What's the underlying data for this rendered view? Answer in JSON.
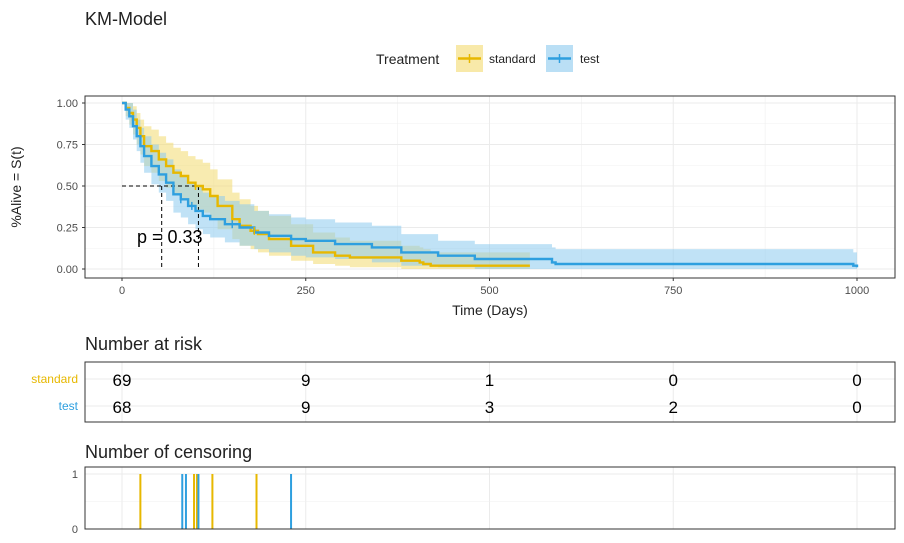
{
  "title": "KM-Model",
  "legend": {
    "title": "Treatment",
    "items": [
      {
        "label": "standard",
        "color": "#E7B800"
      },
      {
        "label": "test",
        "color": "#2E9FDF"
      }
    ]
  },
  "colors": {
    "standard": "#E7B800",
    "test": "#2E9FDF",
    "band_standard": "#F3DB6F",
    "band_test": "#8CCAEE"
  },
  "chart_data": [
    {
      "type": "line",
      "subtype": "kaplan-meier",
      "xlabel": "Time (Days)",
      "ylabel": "%Alive = S(t)",
      "xlim": [
        0,
        1000
      ],
      "ylim": [
        0,
        1
      ],
      "xticks": [
        "0",
        "250",
        "500",
        "750",
        "1000"
      ],
      "yticks": [
        "0.00",
        "0.25",
        "0.50",
        "0.75",
        "1.00"
      ],
      "grid": true,
      "annotation": "p = 0.33",
      "median_lines": [
        {
          "x": 54,
          "y": 0.5
        },
        {
          "x": 104,
          "y": 0.5
        }
      ],
      "series": [
        {
          "name": "standard",
          "x": [
            0,
            5,
            10,
            15,
            20,
            25,
            30,
            40,
            50,
            60,
            70,
            80,
            90,
            100,
            110,
            120,
            130,
            150,
            160,
            175,
            185,
            200,
            230,
            260,
            290,
            310,
            340,
            380,
            405,
            410,
            420,
            460,
            500,
            555
          ],
          "y": [
            1.0,
            0.97,
            0.94,
            0.9,
            0.85,
            0.8,
            0.74,
            0.71,
            0.66,
            0.62,
            0.58,
            0.56,
            0.52,
            0.5,
            0.48,
            0.44,
            0.38,
            0.3,
            0.26,
            0.23,
            0.21,
            0.18,
            0.14,
            0.1,
            0.08,
            0.07,
            0.07,
            0.05,
            0.04,
            0.03,
            0.02,
            0.02,
            0.02,
            0.02
          ],
          "lower": [
            1.0,
            0.92,
            0.87,
            0.81,
            0.75,
            0.69,
            0.62,
            0.58,
            0.53,
            0.49,
            0.45,
            0.42,
            0.38,
            0.36,
            0.34,
            0.3,
            0.24,
            0.18,
            0.14,
            0.12,
            0.1,
            0.08,
            0.05,
            0.03,
            0.02,
            0.01,
            0.01,
            0.0,
            0.0,
            0.0,
            0.0,
            0.0,
            0.0,
            0.0
          ],
          "upper": [
            1.0,
            1.0,
            1.0,
            0.98,
            0.94,
            0.9,
            0.86,
            0.84,
            0.8,
            0.76,
            0.73,
            0.71,
            0.68,
            0.66,
            0.64,
            0.6,
            0.54,
            0.46,
            0.42,
            0.38,
            0.35,
            0.32,
            0.27,
            0.22,
            0.19,
            0.17,
            0.17,
            0.14,
            0.13,
            0.12,
            0.1,
            0.1,
            0.1,
            0.1
          ],
          "censor_x": [
            100,
            180
          ]
        },
        {
          "name": "test",
          "x": [
            0,
            5,
            10,
            15,
            20,
            25,
            30,
            40,
            50,
            60,
            70,
            80,
            90,
            100,
            110,
            120,
            140,
            160,
            180,
            200,
            230,
            250,
            290,
            340,
            380,
            430,
            480,
            520,
            585,
            590,
            700,
            800,
            900,
            995,
            1000
          ],
          "y": [
            1.0,
            0.96,
            0.92,
            0.86,
            0.8,
            0.74,
            0.68,
            0.62,
            0.57,
            0.52,
            0.45,
            0.42,
            0.38,
            0.35,
            0.32,
            0.3,
            0.27,
            0.25,
            0.22,
            0.2,
            0.18,
            0.17,
            0.15,
            0.13,
            0.1,
            0.08,
            0.06,
            0.06,
            0.04,
            0.03,
            0.03,
            0.03,
            0.03,
            0.02,
            0.01
          ],
          "lower": [
            1.0,
            0.9,
            0.85,
            0.78,
            0.71,
            0.64,
            0.58,
            0.51,
            0.46,
            0.41,
            0.34,
            0.31,
            0.27,
            0.24,
            0.21,
            0.19,
            0.16,
            0.14,
            0.12,
            0.1,
            0.08,
            0.07,
            0.06,
            0.04,
            0.02,
            0.01,
            0.0,
            0.0,
            0.0,
            0.0,
            0.0,
            0.0,
            0.0,
            0.0,
            0.0
          ],
          "upper": [
            1.0,
            1.0,
            1.0,
            0.96,
            0.9,
            0.85,
            0.8,
            0.75,
            0.7,
            0.66,
            0.6,
            0.56,
            0.52,
            0.5,
            0.46,
            0.44,
            0.41,
            0.39,
            0.35,
            0.33,
            0.31,
            0.3,
            0.28,
            0.26,
            0.21,
            0.17,
            0.15,
            0.15,
            0.13,
            0.12,
            0.12,
            0.12,
            0.12,
            0.1,
            0.09
          ],
          "censor_x": [
            80,
            95,
            150
          ]
        }
      ]
    },
    {
      "type": "table",
      "title": "Number at risk",
      "rows": [
        {
          "name": "standard",
          "values": [
            "69",
            "9",
            "1",
            "0",
            "0"
          ]
        },
        {
          "name": "test",
          "values": [
            "68",
            "9",
            "3",
            "2",
            "0"
          ]
        }
      ],
      "x": [
        0,
        250,
        500,
        750,
        1000
      ]
    },
    {
      "type": "bar",
      "title": "Number of censoring",
      "yticks": [
        "0",
        "1"
      ],
      "xlim": [
        0,
        1000
      ],
      "ylim": [
        0,
        1
      ],
      "series": [
        {
          "name": "standard",
          "x": [
            25,
            98,
            102,
            123,
            183
          ],
          "values": [
            1,
            1,
            1,
            1,
            1
          ]
        },
        {
          "name": "test",
          "x": [
            82,
            87,
            104,
            230
          ],
          "values": [
            1,
            1,
            1,
            1
          ]
        }
      ]
    }
  ]
}
